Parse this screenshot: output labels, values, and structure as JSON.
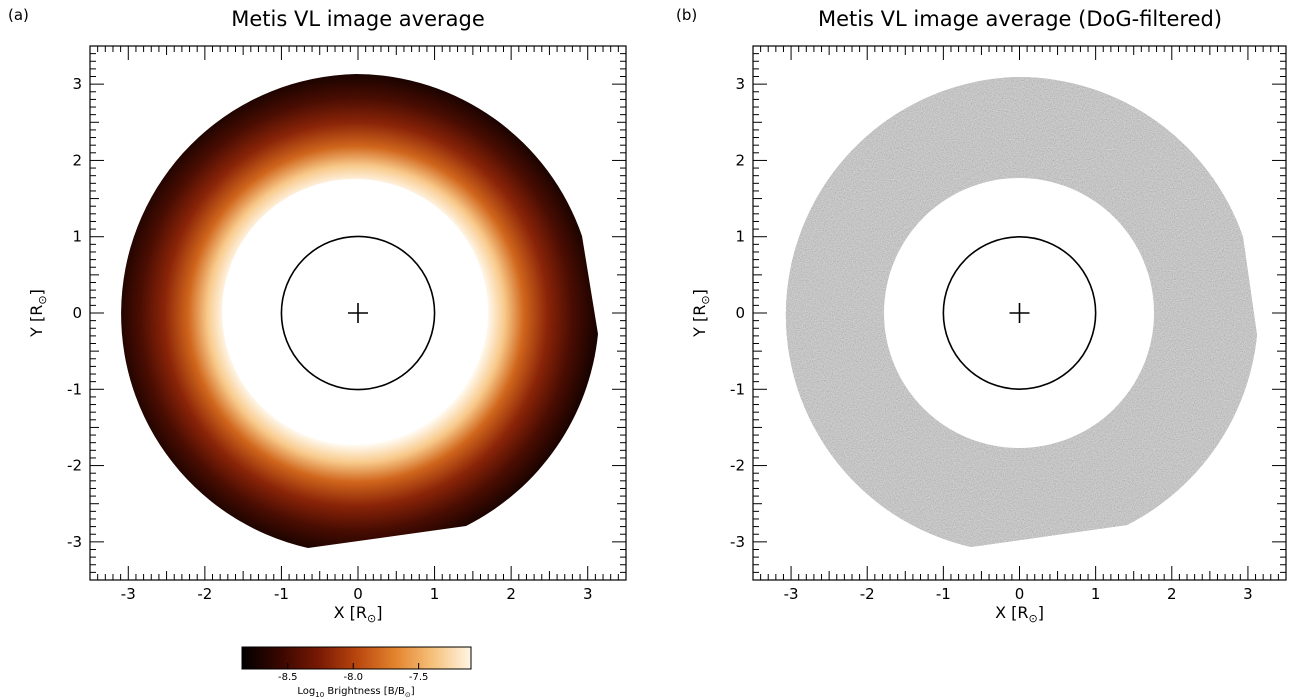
{
  "panels": [
    {
      "id": "a",
      "label": "(a)",
      "title": "Metis VL image average",
      "xlabel_main": "X [R",
      "xlabel_sub": "⊙",
      "xlabel_end": "]",
      "ylabel_main": "Y [R",
      "ylabel_sub": "⊙",
      "ylabel_end": "]",
      "style": "intensity"
    },
    {
      "id": "b",
      "label": "(b)",
      "title": "Metis VL image average (DoG-filtered)",
      "xlabel_main": "X [R",
      "xlabel_sub": "⊙",
      "xlabel_end": "]",
      "ylabel_main": "Y [R",
      "ylabel_sub": "⊙",
      "ylabel_end": "]",
      "style": "dog"
    }
  ],
  "axes": {
    "xlim": [
      -3.5,
      3.5
    ],
    "ylim": [
      -3.5,
      3.5
    ],
    "ticks": [
      -3,
      -2,
      -1,
      0,
      1,
      2,
      3
    ],
    "tick_labels": [
      "-3",
      "-2",
      "-1",
      "0",
      "1",
      "2",
      "3"
    ]
  },
  "image_geometry": {
    "inner_occulter_radius_rsun": 1.75,
    "outer_fov_radius_rsun": 3.15,
    "solar_disk_radius_rsun": 1.0,
    "sun_center_marker": "+"
  },
  "colorbar": {
    "label_main": "Log",
    "label_sub": "10",
    "label_rest": " Brightness [B/B",
    "label_sub2": "⊙",
    "label_end": "]",
    "ticks": [
      -8.5,
      -8.0,
      -7.5
    ],
    "tick_labels": [
      "-8.5",
      "-8.0",
      "-7.5"
    ],
    "range": [
      -8.85,
      -7.1
    ],
    "colors": [
      "#000000",
      "#3a0700",
      "#7a1a04",
      "#b8460e",
      "#e3842e",
      "#f6c07a",
      "#fff6e4"
    ]
  }
}
